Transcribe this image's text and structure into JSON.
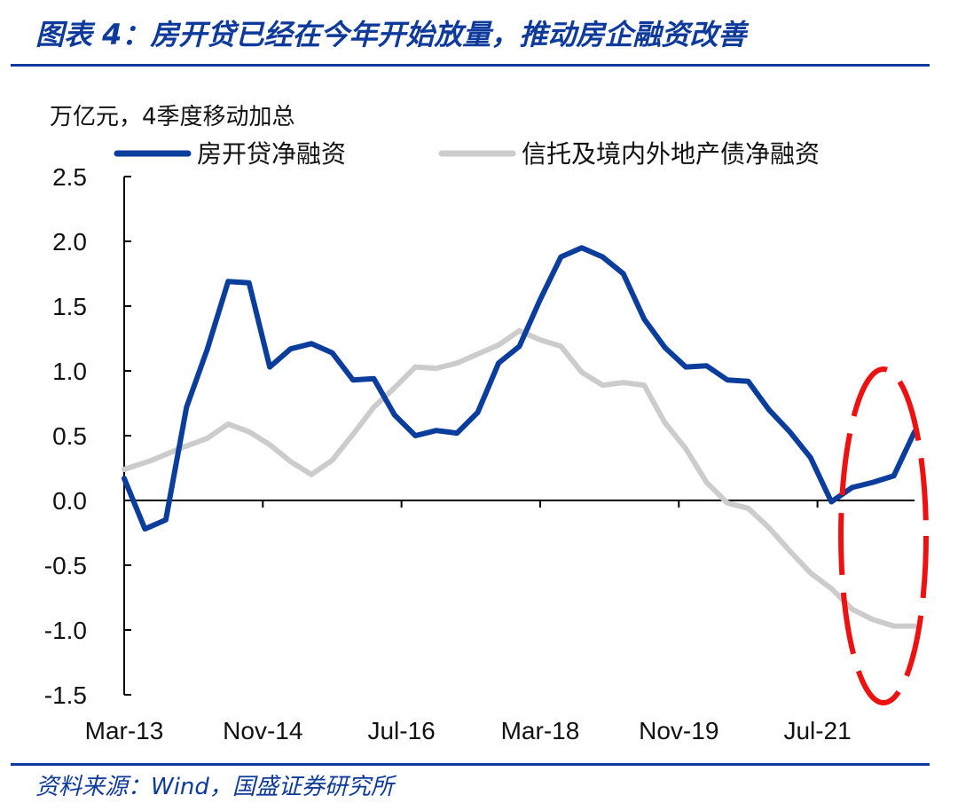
{
  "header": {
    "title": "图表 4：房开贷已经在今年开始放量，推动房企融资改善"
  },
  "footer": {
    "source": "资料来源：Wind，国盛证券研究所"
  },
  "colors": {
    "brand": "#0d3a9b",
    "series1": "#0a3d9c",
    "series2": "#cccccc",
    "highlight": "#ee1111"
  },
  "chart_data": {
    "type": "line",
    "title": "",
    "unit_label": "万亿元，4季度移动加总",
    "xlabel": "",
    "ylabel": "",
    "ylim": [
      -1.5,
      2.5
    ],
    "yticks": [
      2.5,
      2.0,
      1.5,
      1.0,
      0.5,
      0.0,
      -0.5,
      -1.0,
      -1.5
    ],
    "ytick_labels": [
      "2.5",
      "2.0",
      "1.5",
      "1.0",
      "0.5",
      "0.0",
      "-0.5",
      "-1.0",
      "-1.5"
    ],
    "xtick_labels": [
      "Mar-13",
      "Nov-14",
      "Jul-16",
      "Mar-18",
      "Nov-19",
      "Jul-21"
    ],
    "xtick_index": [
      0,
      20,
      40,
      60,
      80,
      100
    ],
    "x_count": 114,
    "legend": [
      "房开贷净融资",
      "信托及境内外地产债净融资"
    ],
    "series": [
      {
        "name": "房开贷净融资",
        "points": [
          [
            0,
            0.17
          ],
          [
            3,
            -0.22
          ],
          [
            6,
            -0.15
          ],
          [
            9,
            0.72
          ],
          [
            12,
            1.17
          ],
          [
            15,
            1.69
          ],
          [
            18,
            1.68
          ],
          [
            21,
            1.03
          ],
          [
            24,
            1.17
          ],
          [
            27,
            1.21
          ],
          [
            30,
            1.14
          ],
          [
            33,
            0.93
          ],
          [
            36,
            0.94
          ],
          [
            39,
            0.66
          ],
          [
            42,
            0.5
          ],
          [
            45,
            0.54
          ],
          [
            48,
            0.52
          ],
          [
            51,
            0.68
          ],
          [
            54,
            1.06
          ],
          [
            57,
            1.19
          ],
          [
            60,
            1.55
          ],
          [
            63,
            1.88
          ],
          [
            66,
            1.95
          ],
          [
            69,
            1.88
          ],
          [
            72,
            1.75
          ],
          [
            75,
            1.4
          ],
          [
            78,
            1.18
          ],
          [
            81,
            1.03
          ],
          [
            84,
            1.04
          ],
          [
            87,
            0.93
          ],
          [
            90,
            0.92
          ],
          [
            93,
            0.7
          ],
          [
            96,
            0.53
          ],
          [
            99,
            0.33
          ],
          [
            102,
            -0.01
          ],
          [
            105,
            0.1
          ],
          [
            108,
            0.14
          ],
          [
            111,
            0.19
          ],
          [
            114,
            0.53
          ]
        ]
      },
      {
        "name": "信托及境内外地产债净融资",
        "points": [
          [
            0,
            0.24
          ],
          [
            4,
            0.31
          ],
          [
            8,
            0.4
          ],
          [
            12,
            0.48
          ],
          [
            15,
            0.59
          ],
          [
            18,
            0.53
          ],
          [
            21,
            0.43
          ],
          [
            24,
            0.3
          ],
          [
            27,
            0.2
          ],
          [
            30,
            0.31
          ],
          [
            33,
            0.51
          ],
          [
            36,
            0.72
          ],
          [
            39,
            0.87
          ],
          [
            42,
            1.03
          ],
          [
            45,
            1.02
          ],
          [
            48,
            1.06
          ],
          [
            51,
            1.13
          ],
          [
            54,
            1.2
          ],
          [
            57,
            1.31
          ],
          [
            60,
            1.24
          ],
          [
            63,
            1.19
          ],
          [
            66,
            0.99
          ],
          [
            69,
            0.89
          ],
          [
            72,
            0.91
          ],
          [
            75,
            0.89
          ],
          [
            78,
            0.6
          ],
          [
            81,
            0.4
          ],
          [
            84,
            0.14
          ],
          [
            87,
            -0.02
          ],
          [
            90,
            -0.06
          ],
          [
            93,
            -0.21
          ],
          [
            96,
            -0.39
          ],
          [
            99,
            -0.56
          ],
          [
            102,
            -0.68
          ],
          [
            105,
            -0.84
          ],
          [
            108,
            -0.92
          ],
          [
            111,
            -0.97
          ],
          [
            114,
            -0.97
          ]
        ]
      }
    ],
    "annotation": {
      "type": "dashed-ellipse",
      "note": "highlights the latest period (Jul-21 onward)"
    }
  }
}
